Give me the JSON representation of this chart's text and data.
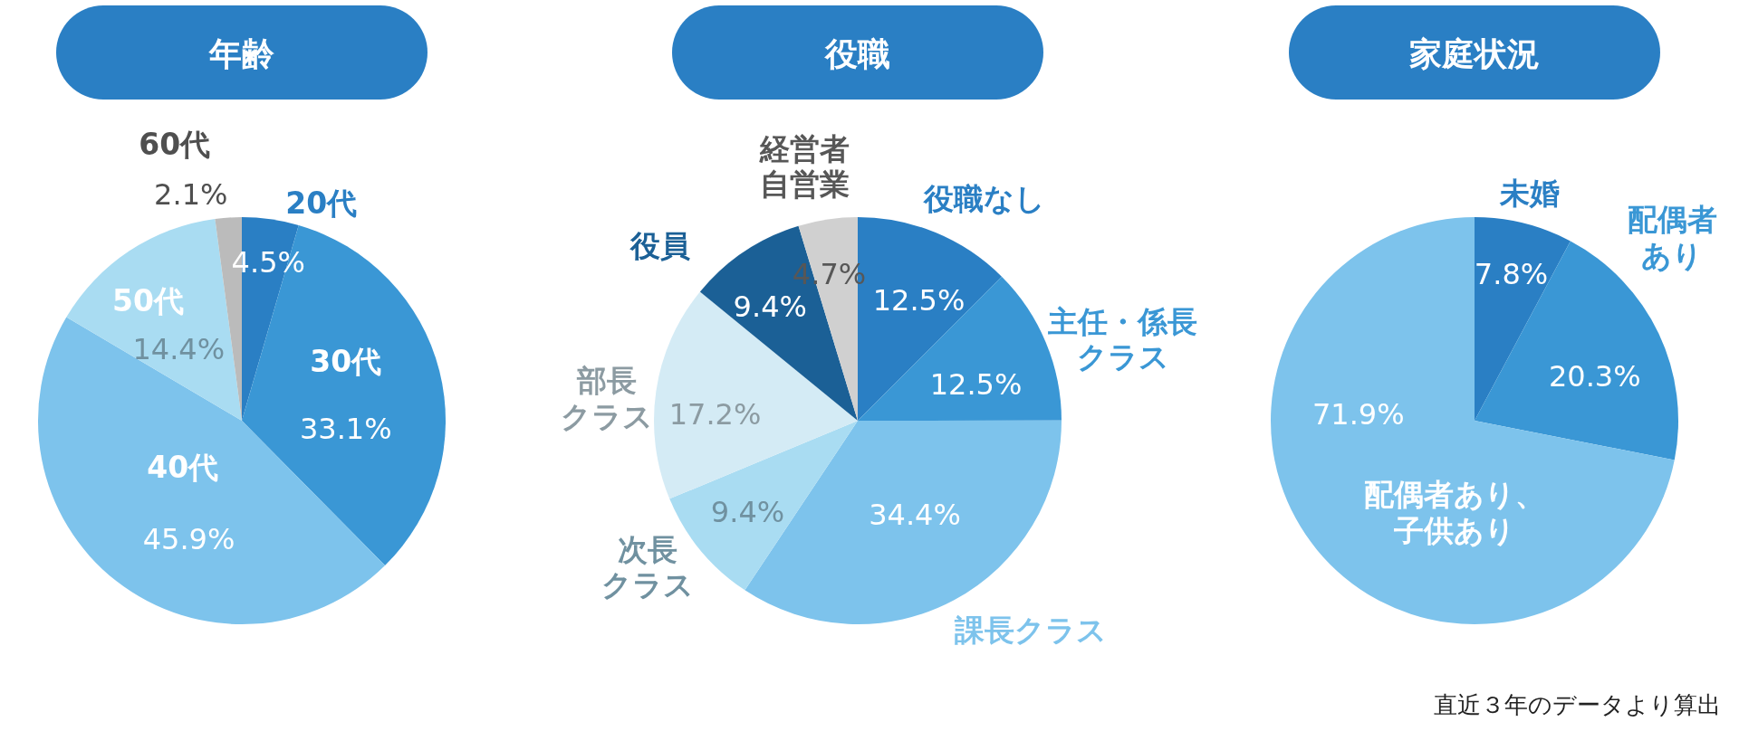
{
  "chart_data": [
    {
      "type": "pie",
      "title": "年齢",
      "categories": [
        "20代",
        "30代",
        "40代",
        "50代",
        "60代"
      ],
      "values": [
        4.5,
        33.1,
        45.9,
        14.4,
        2.1
      ],
      "value_labels": [
        "4.5%",
        "33.1%",
        "45.9%",
        "14.4%",
        "2.1%"
      ],
      "colors": [
        "#2a7fc4",
        "#3a97d5",
        "#7dc3ec",
        "#a9dcf2",
        "#bbbbbb"
      ]
    },
    {
      "type": "pie",
      "title": "役職",
      "categories": [
        "役職なし",
        "主任・係長クラス",
        "課長クラス",
        "次長クラス",
        "部長クラス",
        "役員",
        "経営者自営業"
      ],
      "values": [
        12.5,
        12.5,
        34.4,
        9.4,
        17.2,
        9.4,
        4.7
      ],
      "value_labels": [
        "12.5%",
        "12.5%",
        "34.4%",
        "9.4%",
        "17.2%",
        "9.4%",
        "4.7%"
      ],
      "colors": [
        "#2a7fc4",
        "#3a97d5",
        "#7dc3ec",
        "#a9dcf2",
        "#d4ebf5",
        "#1b6096",
        "#d0d0d0"
      ]
    },
    {
      "type": "pie",
      "title": "家庭状況",
      "categories": [
        "未婚",
        "配偶者あり",
        "配偶者あり、子供あり"
      ],
      "values": [
        7.8,
        20.3,
        71.9
      ],
      "value_labels": [
        "7.8%",
        "20.3%",
        "71.9%"
      ],
      "colors": [
        "#2a7fc4",
        "#3a97d5",
        "#7dc3ec"
      ],
      "annotations": [
        "直近３年のデータより算出"
      ]
    }
  ]
}
